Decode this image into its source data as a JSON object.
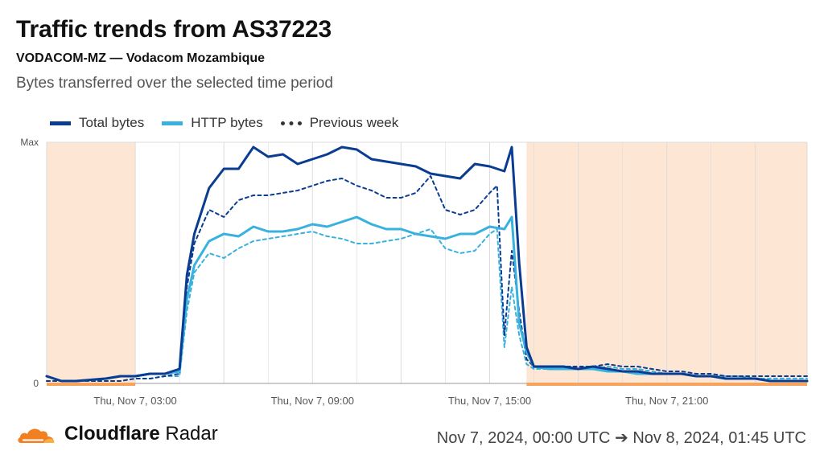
{
  "header": {
    "title": "Traffic trends from AS37223",
    "subtitle": "VODACOM-MZ — Vodacom Mozambique",
    "description": "Bytes transferred over the selected time period"
  },
  "legend": {
    "total": "Total bytes",
    "http": "HTTP bytes",
    "previous": "Previous week"
  },
  "footer": {
    "brand_bold": "Cloudflare",
    "brand_light": "Radar",
    "time_range": "Nov 7, 2024, 00:00 UTC ➔ Nov 8, 2024, 01:45 UTC"
  },
  "colors": {
    "total": "#0a3d91",
    "http": "#38b1de",
    "previous_total": "#0a3d91",
    "previous_http": "#38b1de",
    "night_shade": "#fde6d4",
    "night_bar": "#f7a35c",
    "grid": "#dcdcdc",
    "cloudflare_orange": "#f38020"
  },
  "chart_data": {
    "type": "line",
    "title": "Traffic trends from AS37223",
    "y_tick_labels": [
      "0",
      "Max"
    ],
    "ylim": [
      0,
      1
    ],
    "x_tick_labels": [
      "Thu, Nov 7, 03:00",
      "Thu, Nov 7, 09:00",
      "Thu, Nov 7, 15:00",
      "Thu, Nov 7, 21:00"
    ],
    "x_tick_hours": [
      3,
      9,
      15,
      21
    ],
    "xlim_hours": [
      0,
      25.75
    ],
    "night_periods_hours": [
      [
        0,
        3
      ],
      [
        16.25,
        25.75
      ]
    ],
    "grid": true,
    "legend_position": "top-left",
    "series": [
      {
        "name": "Total bytes",
        "style": "solid",
        "x": [
          0,
          0.5,
          1,
          1.5,
          2,
          2.5,
          3,
          3.5,
          4,
          4.5,
          4.75,
          5,
          5.5,
          6,
          6.5,
          7,
          7.5,
          8,
          8.5,
          9,
          9.5,
          10,
          10.5,
          11,
          11.5,
          12,
          12.5,
          13,
          13.5,
          14,
          14.5,
          15,
          15.5,
          15.75,
          16,
          16.25,
          16.5,
          17,
          17.5,
          18,
          18.5,
          19,
          19.5,
          20,
          20.5,
          21,
          21.5,
          22,
          22.5,
          23,
          23.5,
          24,
          24.5,
          25,
          25.75
        ],
        "values": [
          0.03,
          0.01,
          0.01,
          0.015,
          0.02,
          0.03,
          0.03,
          0.04,
          0.04,
          0.06,
          0.45,
          0.62,
          0.81,
          0.89,
          0.89,
          0.98,
          0.94,
          0.95,
          0.91,
          0.93,
          0.95,
          0.98,
          0.97,
          0.93,
          0.92,
          0.91,
          0.9,
          0.87,
          0.86,
          0.85,
          0.91,
          0.9,
          0.88,
          0.98,
          0.5,
          0.15,
          0.07,
          0.07,
          0.07,
          0.06,
          0.07,
          0.06,
          0.05,
          0.05,
          0.04,
          0.04,
          0.04,
          0.03,
          0.03,
          0.02,
          0.02,
          0.02,
          0.01,
          0.01,
          0.01
        ]
      },
      {
        "name": "HTTP bytes",
        "style": "solid",
        "x": [
          0,
          0.5,
          1,
          1.5,
          2,
          2.5,
          3,
          3.5,
          4,
          4.5,
          4.75,
          5,
          5.5,
          6,
          6.5,
          7,
          7.5,
          8,
          8.5,
          9,
          9.5,
          10,
          10.5,
          11,
          11.5,
          12,
          12.5,
          13,
          13.5,
          14,
          14.5,
          15,
          15.5,
          15.75,
          16,
          16.25,
          16.5,
          17,
          17.5,
          18,
          18.5,
          19,
          19.5,
          20,
          20.5,
          21,
          21.5,
          22,
          22.5,
          23,
          23.5,
          24,
          24.5,
          25,
          25.75
        ],
        "values": [
          0.03,
          0.01,
          0.01,
          0.015,
          0.02,
          0.03,
          0.03,
          0.04,
          0.04,
          0.05,
          0.35,
          0.49,
          0.59,
          0.62,
          0.61,
          0.65,
          0.63,
          0.63,
          0.64,
          0.66,
          0.65,
          0.67,
          0.69,
          0.66,
          0.64,
          0.64,
          0.62,
          0.61,
          0.6,
          0.62,
          0.62,
          0.65,
          0.64,
          0.69,
          0.25,
          0.13,
          0.07,
          0.06,
          0.06,
          0.06,
          0.06,
          0.05,
          0.05,
          0.04,
          0.04,
          0.04,
          0.04,
          0.03,
          0.03,
          0.02,
          0.02,
          0.02,
          0.01,
          0.01,
          0.01
        ]
      },
      {
        "name": "Previous week",
        "style": "dotted",
        "component": "total",
        "x": [
          0,
          0.5,
          1,
          1.5,
          2,
          2.5,
          3,
          3.5,
          4,
          4.5,
          4.75,
          5,
          5.5,
          6,
          6.5,
          7,
          7.5,
          8,
          8.5,
          9,
          9.5,
          10,
          10.5,
          11,
          11.5,
          12,
          12.5,
          13,
          13.5,
          14,
          14.5,
          15,
          15.25,
          15.5,
          15.75,
          16,
          16.25,
          16.5,
          17,
          17.5,
          18,
          18.5,
          19,
          19.5,
          20,
          20.5,
          21,
          21.5,
          22,
          22.5,
          23,
          23.5,
          24,
          24.5,
          25,
          25.75
        ],
        "values": [
          0.01,
          0.01,
          0.01,
          0.01,
          0.01,
          0.01,
          0.02,
          0.02,
          0.03,
          0.04,
          0.4,
          0.58,
          0.72,
          0.69,
          0.76,
          0.78,
          0.78,
          0.79,
          0.8,
          0.82,
          0.84,
          0.85,
          0.82,
          0.8,
          0.77,
          0.77,
          0.79,
          0.86,
          0.72,
          0.7,
          0.72,
          0.79,
          0.82,
          0.2,
          0.55,
          0.3,
          0.1,
          0.07,
          0.07,
          0.07,
          0.07,
          0.07,
          0.08,
          0.07,
          0.07,
          0.06,
          0.05,
          0.05,
          0.04,
          0.04,
          0.03,
          0.03,
          0.03,
          0.03,
          0.03,
          0.03
        ]
      },
      {
        "name": "Previous week",
        "style": "dotted",
        "component": "http",
        "x": [
          0,
          0.5,
          1,
          1.5,
          2,
          2.5,
          3,
          3.5,
          4,
          4.5,
          4.75,
          5,
          5.5,
          6,
          6.5,
          7,
          7.5,
          8,
          8.5,
          9,
          9.5,
          10,
          10.5,
          11,
          11.5,
          12,
          12.5,
          13,
          13.5,
          14,
          14.5,
          15,
          15.25,
          15.5,
          15.75,
          16,
          16.25,
          16.5,
          17,
          17.5,
          18,
          18.5,
          19,
          19.5,
          20,
          20.5,
          21,
          21.5,
          22,
          22.5,
          23,
          23.5,
          24,
          24.5,
          25,
          25.75
        ],
        "values": [
          0.01,
          0.01,
          0.01,
          0.01,
          0.01,
          0.01,
          0.02,
          0.02,
          0.03,
          0.03,
          0.3,
          0.46,
          0.54,
          0.52,
          0.56,
          0.59,
          0.6,
          0.61,
          0.62,
          0.63,
          0.61,
          0.6,
          0.58,
          0.58,
          0.59,
          0.6,
          0.62,
          0.64,
          0.56,
          0.54,
          0.55,
          0.62,
          0.64,
          0.15,
          0.4,
          0.2,
          0.08,
          0.06,
          0.06,
          0.06,
          0.06,
          0.06,
          0.07,
          0.06,
          0.06,
          0.05,
          0.04,
          0.04,
          0.03,
          0.03,
          0.03,
          0.03,
          0.02,
          0.02,
          0.02,
          0.02
        ]
      }
    ]
  }
}
